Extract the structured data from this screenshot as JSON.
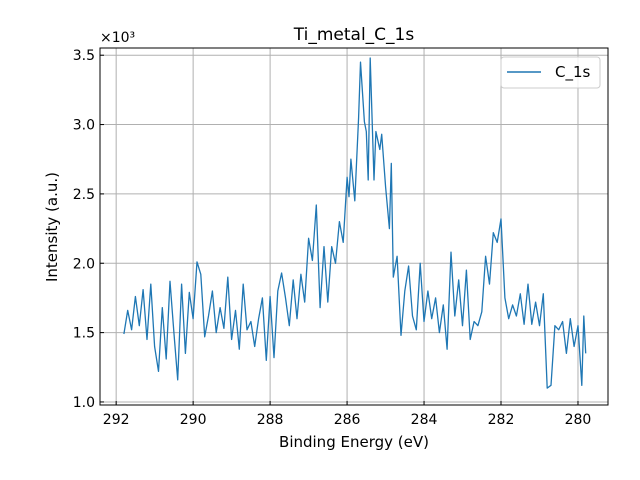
{
  "chart_data": {
    "type": "line",
    "title": "Ti_metal_C_1s",
    "xlabel": "Binding Energy (eV)",
    "ylabel": "Intensity (a.u.)",
    "y_offset_label": "×10³",
    "xlim": [
      292.42,
      279.22
    ],
    "ylim": [
      0.978,
      3.552
    ],
    "x_reversed": true,
    "grid": true,
    "legend_position": "top-right",
    "xticks": [
      292,
      290,
      288,
      286,
      284,
      282,
      280
    ],
    "xtick_labels": [
      "292",
      "290",
      "288",
      "286",
      "284",
      "282",
      "280"
    ],
    "yticks": [
      1.0,
      1.5,
      2.0,
      2.5,
      3.0,
      3.5
    ],
    "ytick_labels": [
      "1.0",
      "1.5",
      "2.0",
      "2.5",
      "3.0",
      "3.5"
    ],
    "series": [
      {
        "name": "C_1s",
        "color": "#1f77b4",
        "x": [
          291.8,
          291.7,
          291.6,
          291.5,
          291.4,
          291.3,
          291.2,
          291.1,
          291.0,
          290.9,
          290.8,
          290.7,
          290.6,
          290.5,
          290.4,
          290.3,
          290.2,
          290.1,
          290.0,
          289.9,
          289.8,
          289.7,
          289.6,
          289.5,
          289.4,
          289.3,
          289.2,
          289.1,
          289.0,
          288.9,
          288.8,
          288.7,
          288.6,
          288.5,
          288.4,
          288.3,
          288.2,
          288.1,
          288.0,
          287.9,
          287.8,
          287.7,
          287.6,
          287.5,
          287.4,
          287.3,
          287.2,
          287.1,
          287.0,
          286.9,
          286.8,
          286.7,
          286.6,
          286.5,
          286.4,
          286.3,
          286.2,
          286.1,
          286.0,
          285.95,
          285.9,
          285.8,
          285.7,
          285.65,
          285.55,
          285.5,
          285.45,
          285.4,
          285.3,
          285.25,
          285.15,
          285.1,
          285.0,
          284.9,
          284.85,
          284.8,
          284.7,
          284.6,
          284.5,
          284.4,
          284.3,
          284.2,
          284.1,
          284.0,
          283.9,
          283.8,
          283.7,
          283.6,
          283.5,
          283.4,
          283.3,
          283.2,
          283.1,
          283.0,
          282.9,
          282.8,
          282.7,
          282.6,
          282.5,
          282.4,
          282.3,
          282.2,
          282.1,
          282.0,
          281.9,
          281.8,
          281.7,
          281.6,
          281.5,
          281.4,
          281.3,
          281.2,
          281.1,
          281.0,
          280.9,
          280.8,
          280.7,
          280.6,
          280.5,
          280.4,
          280.3,
          280.2,
          280.1,
          280.0,
          279.9,
          279.85,
          279.8
        ],
        "y": [
          1.49,
          1.66,
          1.52,
          1.76,
          1.55,
          1.81,
          1.45,
          1.85,
          1.4,
          1.22,
          1.68,
          1.31,
          1.87,
          1.5,
          1.16,
          1.85,
          1.35,
          1.79,
          1.6,
          2.01,
          1.92,
          1.47,
          1.62,
          1.8,
          1.5,
          1.68,
          1.53,
          1.9,
          1.45,
          1.66,
          1.38,
          1.85,
          1.52,
          1.58,
          1.4,
          1.6,
          1.75,
          1.3,
          1.76,
          1.32,
          1.8,
          1.93,
          1.75,
          1.55,
          1.88,
          1.6,
          1.92,
          1.72,
          2.18,
          2.02,
          2.42,
          1.68,
          2.12,
          1.72,
          2.12,
          2.0,
          2.3,
          2.15,
          2.62,
          2.48,
          2.75,
          2.45,
          3.05,
          3.45,
          3.02,
          2.95,
          2.6,
          3.48,
          2.6,
          2.95,
          2.82,
          2.93,
          2.55,
          2.25,
          2.72,
          1.9,
          2.05,
          1.48,
          1.8,
          1.98,
          1.62,
          1.52,
          2.0,
          1.58,
          1.8,
          1.6,
          1.75,
          1.5,
          1.7,
          1.38,
          2.08,
          1.62,
          1.88,
          1.55,
          1.95,
          1.45,
          1.58,
          1.55,
          1.65,
          2.05,
          1.85,
          2.22,
          2.15,
          2.32,
          1.75,
          1.6,
          1.7,
          1.62,
          1.78,
          1.56,
          1.85,
          1.56,
          1.72,
          1.55,
          1.78,
          1.1,
          1.12,
          1.55,
          1.52,
          1.58,
          1.35,
          1.6,
          1.4,
          1.55,
          1.12,
          1.62,
          1.35
        ]
      }
    ]
  }
}
